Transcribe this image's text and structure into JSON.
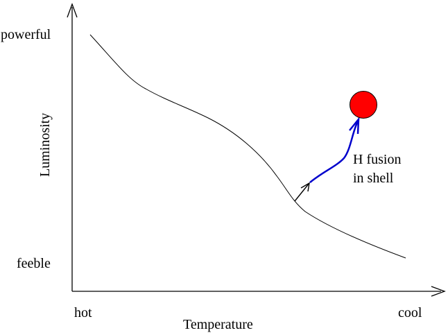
{
  "axes": {
    "x_label": "Temperature",
    "y_label": "Luminosity",
    "x_low_label": "hot",
    "x_high_label": "cool",
    "y_high_label": "powerful",
    "y_low_label": "feeble"
  },
  "annotation": {
    "line1": "H fusion",
    "line2": "in shell"
  },
  "colors": {
    "axis": "#000000",
    "main_sequence": "#000000",
    "evolution_track": "#0000cc",
    "red_giant": "#ff0000",
    "text": "#000000"
  }
}
